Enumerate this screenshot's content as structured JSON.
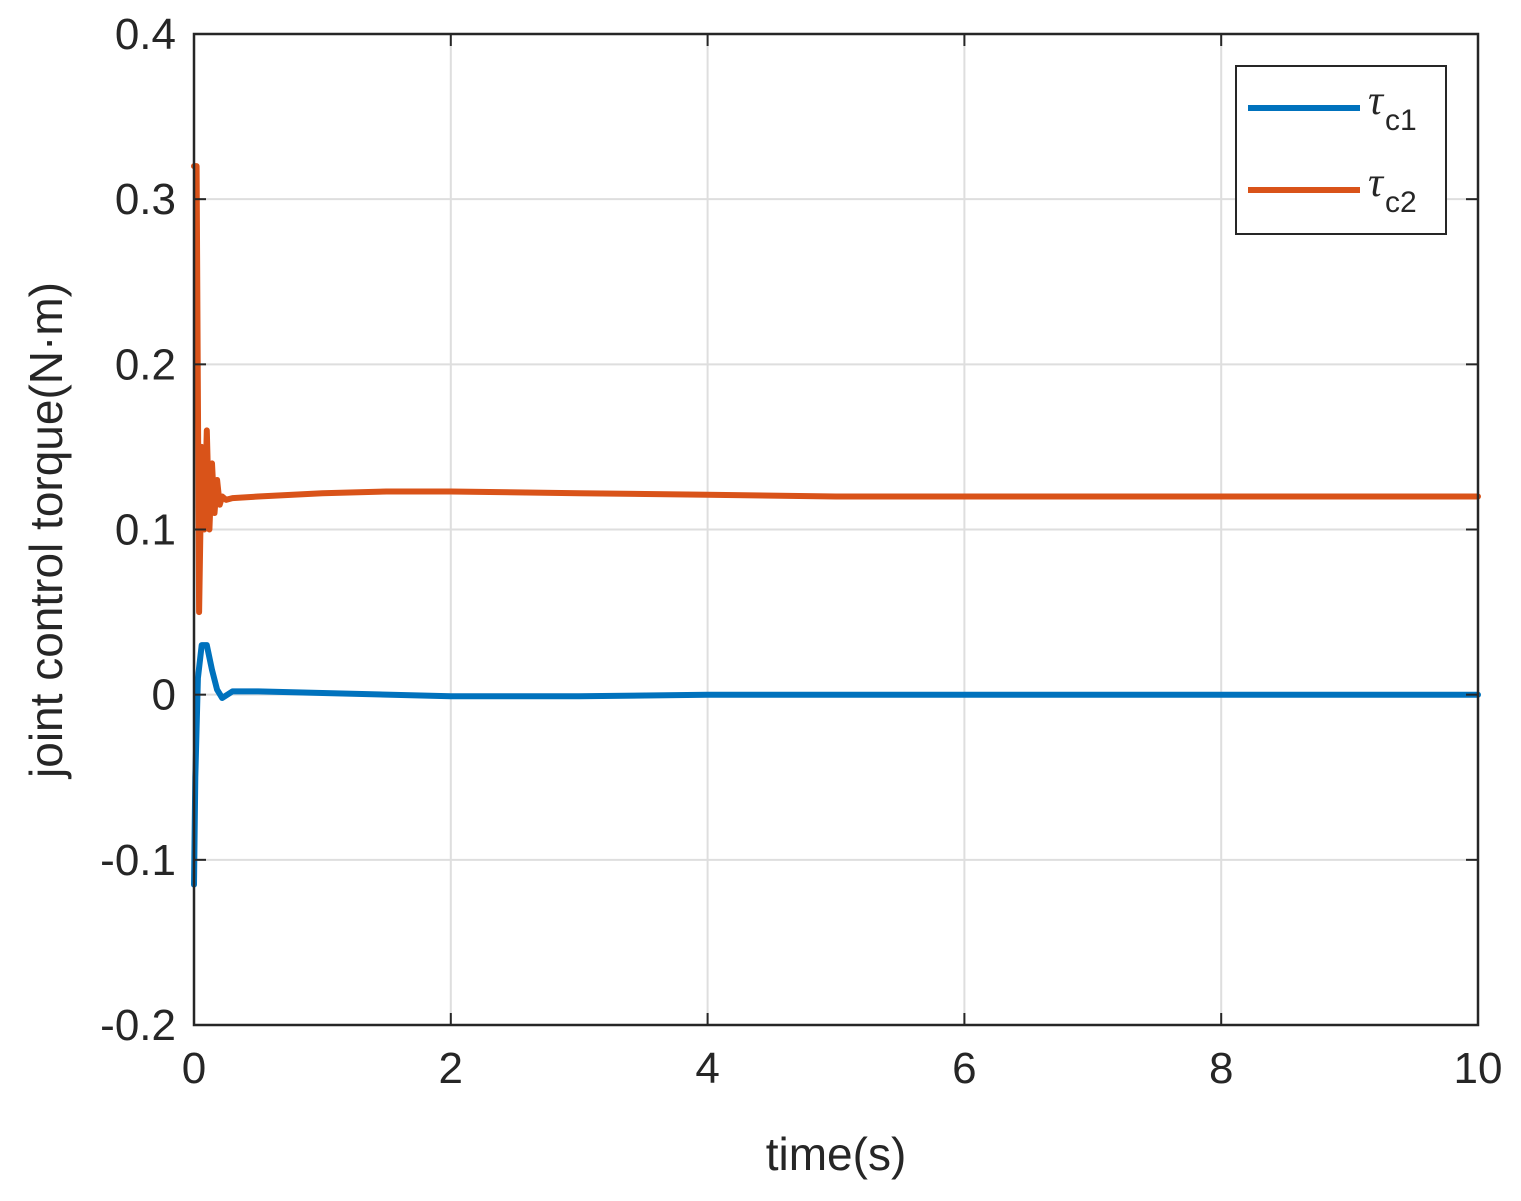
{
  "chart_data": {
    "type": "line",
    "title": "",
    "xlabel": "time(s)",
    "ylabel": "joint control torque(N·m)",
    "xlim": [
      0,
      10
    ],
    "ylim": [
      -0.2,
      0.4
    ],
    "xticks": [
      0,
      2,
      4,
      6,
      8,
      10
    ],
    "xtick_labels": [
      "0",
      "2",
      "4",
      "6",
      "8",
      "10"
    ],
    "yticks": [
      -0.2,
      -0.1,
      0,
      0.1,
      0.2,
      0.3,
      0.4
    ],
    "ytick_labels": [
      "-0.2",
      "-0.1",
      "0",
      "0.1",
      "0.2",
      "0.3",
      "0.4"
    ],
    "grid": true,
    "legend_position": "top-right",
    "series": [
      {
        "name": "τc1",
        "symbol": "τ",
        "subscript": "c1",
        "color": "#0072BD",
        "x": [
          0,
          0.01,
          0.03,
          0.06,
          0.1,
          0.14,
          0.18,
          0.22,
          0.3,
          0.5,
          1,
          2,
          3,
          4,
          5,
          6,
          7,
          8,
          9,
          10
        ],
        "y": [
          -0.115,
          -0.05,
          0.01,
          0.03,
          0.03,
          0.015,
          0.003,
          -0.002,
          0.002,
          0.002,
          0.001,
          -0.001,
          -0.001,
          0,
          0,
          0,
          0,
          0,
          0,
          0
        ]
      },
      {
        "name": "τc2",
        "symbol": "τ",
        "subscript": "c2",
        "color": "#D95319",
        "x": [
          0,
          0.02,
          0.04,
          0.06,
          0.08,
          0.1,
          0.12,
          0.14,
          0.16,
          0.18,
          0.2,
          0.22,
          0.25,
          0.3,
          0.5,
          1,
          1.5,
          2,
          3,
          4,
          5,
          6,
          7,
          8,
          9,
          10
        ],
        "y": [
          0.32,
          0.32,
          0.05,
          0.15,
          0.1,
          0.16,
          0.1,
          0.14,
          0.11,
          0.13,
          0.115,
          0.12,
          0.118,
          0.119,
          0.12,
          0.122,
          0.123,
          0.123,
          0.122,
          0.121,
          0.12,
          0.12,
          0.12,
          0.12,
          0.12,
          0.12
        ]
      }
    ]
  }
}
